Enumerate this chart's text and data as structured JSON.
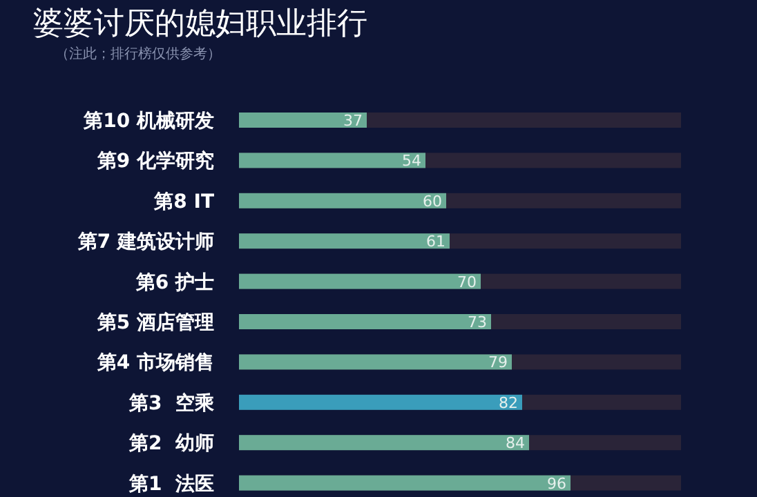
{
  "chart_data": {
    "type": "bar",
    "orientation": "horizontal",
    "title": "婆婆讨厌的媳妇职业排行",
    "subtitle": "（注此；排行榜仅供参考）",
    "categories": [
      "第10 机械研发",
      "第9 化学研究",
      "第8 IT",
      "第7 建筑设计师",
      "第6 护士",
      "第5 酒店管理",
      "第4 市场销售",
      "第3  空乘",
      "第2  幼师",
      "第1  法医"
    ],
    "values": [
      37,
      54,
      60,
      61,
      70,
      73,
      79,
      82,
      84,
      96
    ],
    "colors": [
      "#6aab95",
      "#6aab95",
      "#6aab95",
      "#6aab95",
      "#6aab95",
      "#6aab95",
      "#6aab95",
      "#3a9dbb",
      "#6aab95",
      "#6aab95"
    ],
    "xlim": [
      0,
      128
    ],
    "tick_labels": "y",
    "data_labels": true
  }
}
